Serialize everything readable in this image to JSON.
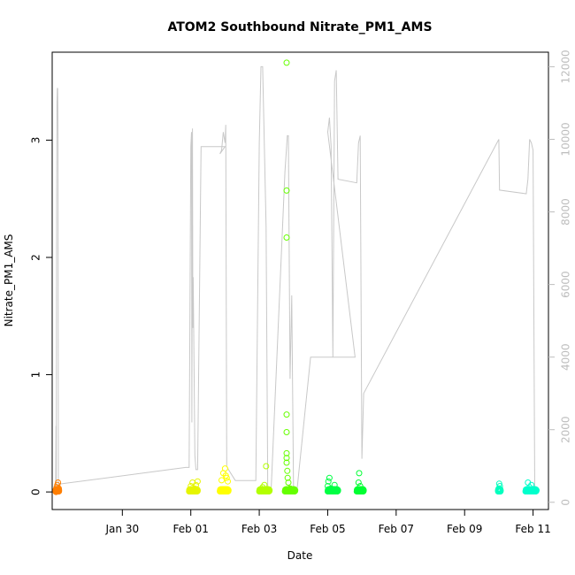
{
  "chart_data": {
    "type": "scatter",
    "title": "ATOM2 Southbound Nitrate_PM1_AMS",
    "xlabel": "Date",
    "ylabel": "Nitrate_PM1_AMS",
    "x_tick_labels": [
      "Jan 30",
      "Feb 01",
      "Feb 03",
      "Feb 05",
      "Feb 07",
      "Feb 09",
      "Feb 11"
    ],
    "x_ticks_day": [
      2.0,
      4.0,
      6.0,
      8.0,
      10.0,
      12.0,
      14.0
    ],
    "xlim_day": [
      -0.05,
      14.45
    ],
    "ylim": [
      -0.15,
      3.75
    ],
    "y_ticks": [
      0,
      1,
      2,
      3
    ],
    "y_tick_labels": [
      "0",
      "1",
      "2",
      "3"
    ],
    "y2lim": [
      -200,
      12400
    ],
    "y2_ticks": [
      0,
      2000,
      4000,
      6000,
      8000,
      10000,
      12000
    ],
    "y2_tick_labels": [
      "0",
      "2000",
      "4000",
      "6000",
      "8000",
      "10000",
      "12000"
    ],
    "grid": false,
    "colors": {
      "flight1": "#ff7f00",
      "flight2": "#e6f500",
      "flight3": "#ffff00",
      "flight4": "#b3ff00",
      "flight5": "#66ff00",
      "flight6": "#00ff44",
      "flight7": "#00ff33",
      "flight8": "#00ffbf",
      "flight9": "#00ffcc",
      "altitude": "#c8c8c8"
    },
    "series": [
      {
        "color_key": "flight1",
        "x_range": [
          0.05,
          0.15
        ],
        "points": [
          [
            0.06,
            0.0
          ],
          [
            0.08,
            0.04
          ],
          [
            0.1,
            0.06
          ],
          [
            0.12,
            0.08
          ],
          [
            0.14,
            0.03
          ]
        ]
      },
      {
        "color_key": "flight2",
        "x_range": [
          3.95,
          4.2
        ],
        "points": [
          [
            4.0,
            0.05
          ],
          [
            4.05,
            0.08
          ],
          [
            4.1,
            0.03
          ],
          [
            4.15,
            0.06
          ],
          [
            4.2,
            0.09
          ]
        ]
      },
      {
        "color_key": "flight3",
        "x_range": [
          4.85,
          5.1
        ],
        "points": [
          [
            4.9,
            0.1
          ],
          [
            4.95,
            0.16
          ],
          [
            5.0,
            0.2
          ],
          [
            5.02,
            0.14
          ],
          [
            5.05,
            0.12
          ],
          [
            5.08,
            0.09
          ]
        ]
      },
      {
        "color_key": "flight4",
        "x_range": [
          6.0,
          6.3
        ],
        "points": [
          [
            6.05,
            0.02
          ],
          [
            6.1,
            0.04
          ],
          [
            6.15,
            0.06
          ],
          [
            6.2,
            0.22
          ],
          [
            6.25,
            0.01
          ]
        ]
      },
      {
        "color_key": "flight5",
        "x_range": [
          6.75,
          7.05
        ],
        "points": [
          [
            6.8,
            3.66
          ],
          [
            6.8,
            2.57
          ],
          [
            6.8,
            2.17
          ],
          [
            6.8,
            0.66
          ],
          [
            6.8,
            0.51
          ],
          [
            6.8,
            0.33
          ],
          [
            6.8,
            0.29
          ],
          [
            6.8,
            0.25
          ],
          [
            6.82,
            0.18
          ],
          [
            6.83,
            0.12
          ],
          [
            6.85,
            0.08
          ],
          [
            6.9,
            0.03
          ]
        ]
      },
      {
        "color_key": "flight6",
        "x_range": [
          8.0,
          8.3
        ],
        "points": [
          [
            8.0,
            0.05
          ],
          [
            8.02,
            0.09
          ],
          [
            8.05,
            0.12
          ],
          [
            8.1,
            0.03
          ],
          [
            8.2,
            0.06
          ]
        ]
      },
      {
        "color_key": "flight7",
        "x_range": [
          8.85,
          9.05
        ],
        "points": [
          [
            8.9,
            0.08
          ],
          [
            8.92,
            0.16
          ],
          [
            8.95,
            0.05
          ],
          [
            9.0,
            0.02
          ]
        ]
      },
      {
        "color_key": "flight8",
        "x_range": [
          12.98,
          13.05
        ],
        "points": [
          [
            13.0,
            0.03
          ],
          [
            13.01,
            0.07
          ],
          [
            13.03,
            0.05
          ]
        ]
      },
      {
        "color_key": "flight9",
        "x_range": [
          13.78,
          14.1
        ],
        "points": [
          [
            13.85,
            0.08
          ],
          [
            13.9,
            0.04
          ],
          [
            13.95,
            0.06
          ],
          [
            14.0,
            0.02
          ]
        ]
      }
    ],
    "altitude_line": [
      [
        0.05,
        330
      ],
      [
        0.06,
        2100
      ],
      [
        0.07,
        200
      ],
      [
        0.08,
        8200
      ],
      [
        0.09,
        11000
      ],
      [
        0.1,
        11400
      ],
      [
        0.11,
        11400
      ],
      [
        0.12,
        10000
      ],
      [
        0.13,
        500
      ],
      [
        0.15,
        500
      ],
      [
        3.85,
        960
      ],
      [
        3.95,
        960
      ],
      [
        4.0,
        9800
      ],
      [
        4.02,
        10200
      ],
      [
        4.03,
        2200
      ],
      [
        4.05,
        10300
      ],
      [
        4.06,
        4800
      ],
      [
        4.07,
        6200
      ],
      [
        4.1,
        3100
      ],
      [
        4.12,
        1300
      ],
      [
        4.15,
        900
      ],
      [
        4.2,
        900
      ],
      [
        4.3,
        9800
      ],
      [
        5.0,
        9800
      ],
      [
        4.85,
        9600
      ],
      [
        4.9,
        9700
      ],
      [
        4.95,
        10200
      ],
      [
        5.0,
        9900
      ],
      [
        5.02,
        10400
      ],
      [
        5.05,
        1000
      ],
      [
        5.1,
        900
      ],
      [
        5.3,
        600
      ],
      [
        5.9,
        600
      ],
      [
        6.0,
        9900
      ],
      [
        6.05,
        12000
      ],
      [
        6.1,
        12000
      ],
      [
        6.2,
        7600
      ],
      [
        6.25,
        300
      ],
      [
        6.35,
        400
      ],
      [
        6.75,
        9100
      ],
      [
        6.8,
        9800
      ],
      [
        6.82,
        10100
      ],
      [
        6.85,
        10100
      ],
      [
        6.9,
        3400
      ],
      [
        6.95,
        5700
      ],
      [
        7.0,
        400
      ],
      [
        7.1,
        300
      ],
      [
        7.5,
        4000
      ],
      [
        8.8,
        4000
      ],
      [
        8.0,
        10200
      ],
      [
        8.05,
        10600
      ],
      [
        8.1,
        9800
      ],
      [
        8.15,
        4000
      ],
      [
        8.2,
        11600
      ],
      [
        8.25,
        11900
      ],
      [
        8.3,
        8900
      ],
      [
        8.85,
        8800
      ],
      [
        8.9,
        9900
      ],
      [
        8.95,
        10100
      ],
      [
        9.0,
        1200
      ],
      [
        9.05,
        3000
      ],
      [
        13.0,
        10000
      ],
      [
        13.02,
        8600
      ],
      [
        13.8,
        8500
      ],
      [
        13.85,
        8900
      ],
      [
        13.9,
        10000
      ],
      [
        13.95,
        9900
      ],
      [
        14.0,
        9700
      ],
      [
        14.05,
        300
      ]
    ]
  }
}
